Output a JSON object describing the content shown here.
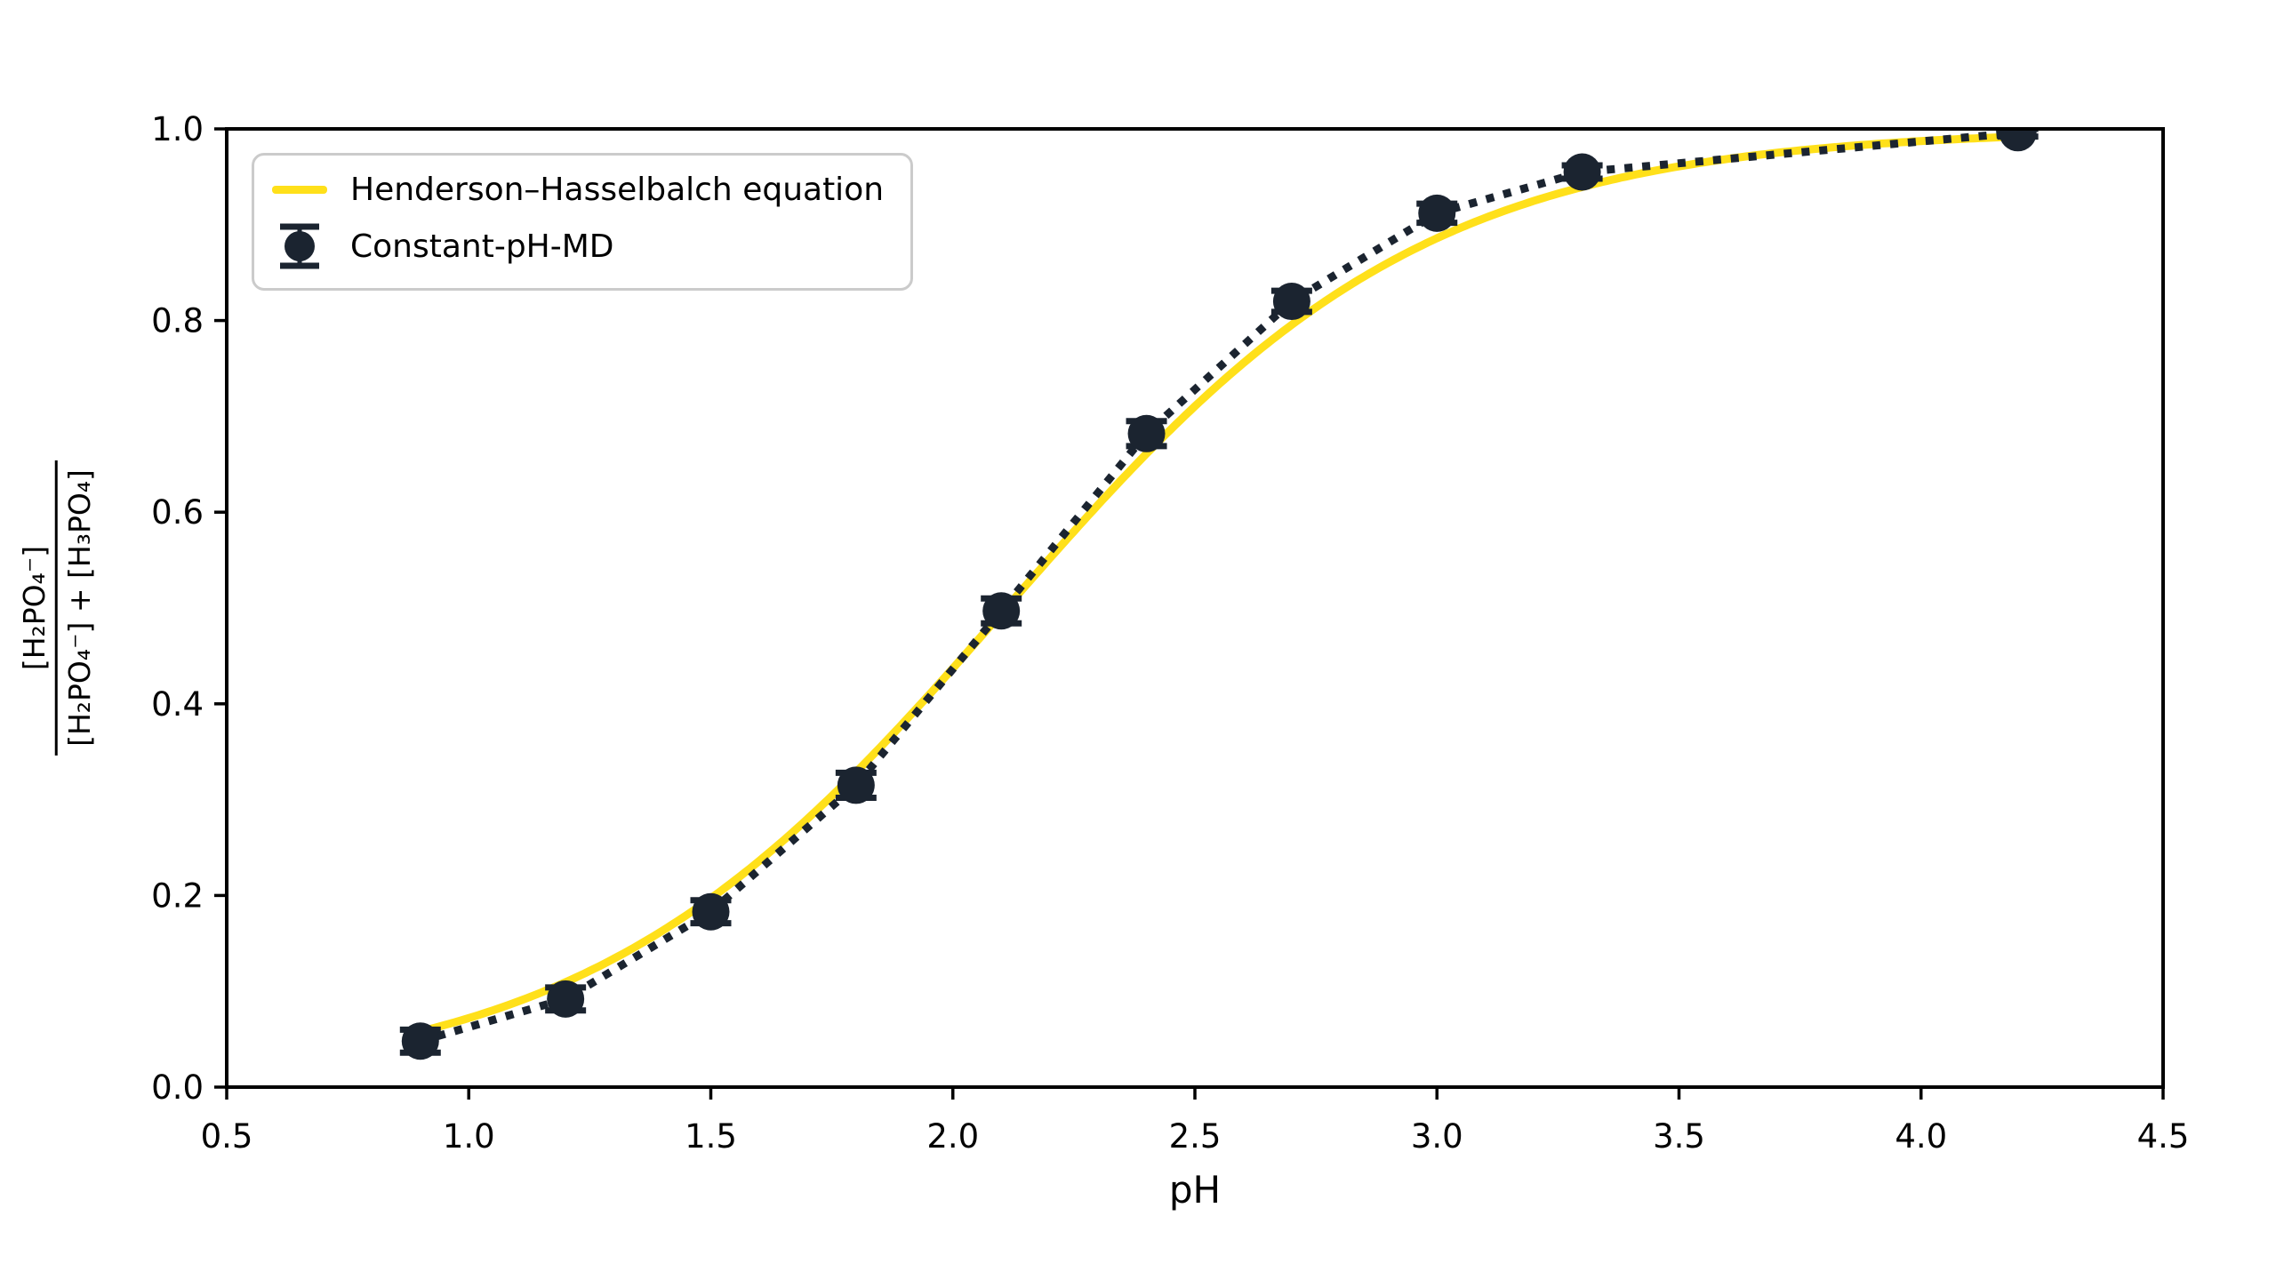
{
  "chart_data": {
    "type": "line",
    "title": "",
    "xlabel": "pH",
    "ylabel_numerator": "[H₂PO₄⁻]",
    "ylabel_denominator": "[H₂PO₄⁻] + [H₃PO₄]",
    "xlim": [
      0.5,
      4.5
    ],
    "ylim": [
      0.0,
      1.0
    ],
    "x_tick_labels": [
      "0.5",
      "1.0",
      "1.5",
      "2.0",
      "2.5",
      "3.0",
      "3.5",
      "4.0",
      "4.5"
    ],
    "y_tick_labels": [
      "0.0",
      "0.2",
      "0.4",
      "0.6",
      "0.8",
      "1.0"
    ],
    "grid": false,
    "legend_position": "upper left",
    "background_color": "#ffffff",
    "axis_color": "#000000",
    "series": [
      {
        "name": "Henderson–Hasselbalch equation",
        "type": "curve",
        "color": "#FFE01A",
        "equation": "f = 1 / (1 + 10^(pKa - pH))",
        "pka": 2.11,
        "x_range": [
          0.9,
          4.2
        ]
      },
      {
        "name": "Constant-pH-MD",
        "type": "errorbar",
        "color": "#1B2430",
        "linestyle": "dotted",
        "marker": "circle",
        "x": [
          0.9,
          1.2,
          1.5,
          1.8,
          2.1,
          2.4,
          2.7,
          3.0,
          3.3,
          4.2
        ],
        "y": [
          0.048,
          0.092,
          0.183,
          0.315,
          0.497,
          0.682,
          0.82,
          0.912,
          0.955,
          0.996
        ],
        "yerr": [
          0.012,
          0.012,
          0.012,
          0.013,
          0.013,
          0.013,
          0.011,
          0.01,
          0.007,
          0.004
        ]
      }
    ]
  }
}
